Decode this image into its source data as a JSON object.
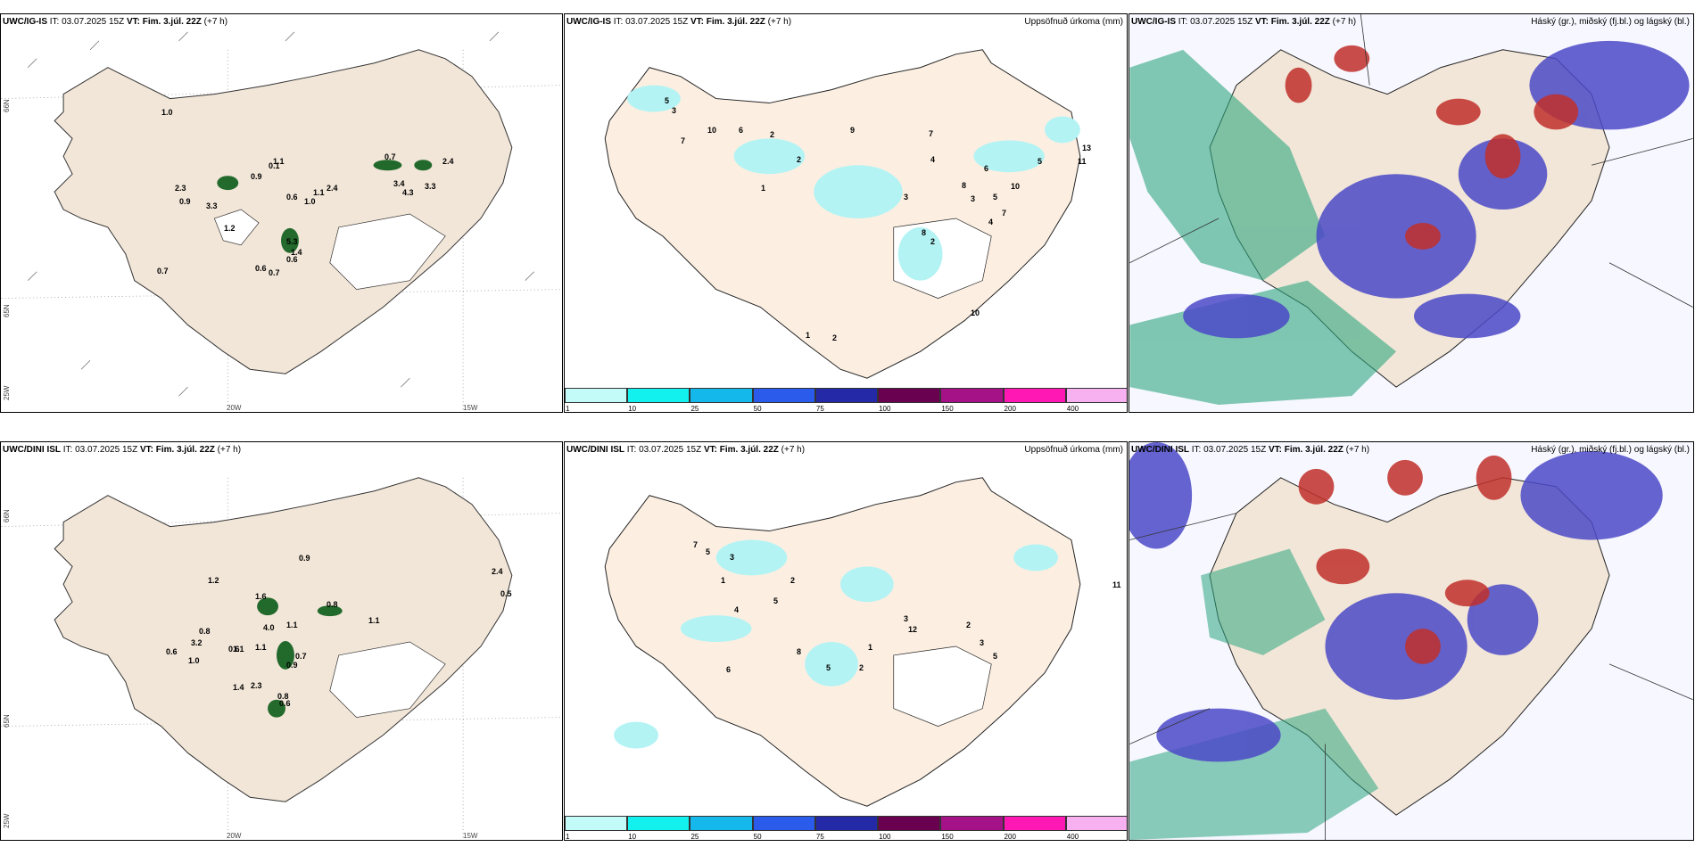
{
  "rows": [
    {
      "panels": [
        {
          "model": "UWC/IG-IS",
          "it_label": "IT:",
          "it": "03.07.2025 15Z",
          "vt_label": "VT:",
          "vt": "Fim. 3.júl. 22Z",
          "lead": "(+7 h)",
          "right": "",
          "lat_labels": [
            "66N",
            "65N",
            "25W"
          ],
          "lon_labels": [
            "20W",
            "15W"
          ],
          "values": [
            "1.0",
            "2.3",
            "0.9",
            "3.3",
            "0.7",
            "1.2",
            "0.9",
            "0.1",
            "1.1",
            "0.6",
            "1.0",
            "2.4",
            "0.7",
            "3.4",
            "4.3",
            "3.3",
            "2.4",
            "5.3",
            "1.4",
            "0.6",
            "0.7",
            "1.1",
            "0.6"
          ]
        },
        {
          "model": "UWC/IG-IS",
          "it_label": "IT:",
          "it": "03.07.2025 15Z",
          "vt_label": "VT:",
          "vt": "Fim. 3.júl. 22Z",
          "lead": "(+7 h)",
          "right": "Uppsöfnuð úrkoma (mm)",
          "values": [
            "5",
            "3",
            "10",
            "6",
            "7",
            "2",
            "2",
            "9",
            "7",
            "5",
            "3",
            "1",
            "4",
            "13",
            "11",
            "8",
            "10",
            "6",
            "3",
            "4",
            "5",
            "7",
            "8",
            "2",
            "1",
            "2",
            "10"
          ]
        },
        {
          "model": "UWC/IG-IS",
          "it_label": "IT:",
          "it": "03.07.2025 15Z",
          "vt_label": "VT:",
          "vt": "Fim. 3.júl. 22Z",
          "lead": "(+7 h)",
          "right": "Háský (gr.), miðský (fj.bl.) og lágský (bl.)"
        }
      ]
    },
    {
      "panels": [
        {
          "model": "UWC/DINI ISL",
          "it_label": "IT:",
          "it": "03.07.2025 15Z",
          "vt_label": "VT:",
          "vt": "Fim. 3.júl. 22Z",
          "lead": "(+7 h)",
          "right": "",
          "lat_labels": [
            "66N",
            "65N",
            "25W"
          ],
          "lon_labels": [
            "20W",
            "15W"
          ],
          "values": [
            "0.9",
            "1.2",
            "1.6",
            "0.8",
            "1.1",
            "0.8",
            "4.0",
            "1.1",
            "0.6",
            "3.2",
            "1.1",
            "1.0",
            "0.6",
            "1.4",
            "2.3",
            "0.7",
            "0.9",
            "0.6",
            "2.4",
            "0.5",
            "0.8",
            "1.1"
          ]
        },
        {
          "model": "UWC/DINI ISL",
          "it_label": "IT:",
          "it": "03.07.2025 15Z",
          "vt_label": "VT:",
          "vt": "Fim. 3.júl. 22Z",
          "lead": "(+7 h)",
          "right": "Uppsöfnuð úrkoma (mm)",
          "values": [
            "7",
            "5",
            "3",
            "2",
            "1",
            "4",
            "5",
            "6",
            "8",
            "2",
            "3",
            "12",
            "5",
            "1",
            "11",
            "2",
            "3",
            "5"
          ]
        },
        {
          "model": "UWC/DINI ISL",
          "it_label": "IT:",
          "it": "03.07.2025 15Z",
          "vt_label": "VT:",
          "vt": "Fim. 3.júl. 22Z",
          "lead": "(+7 h)",
          "right": "Háský (gr.), miðský (fj.bl.) og lágský (bl.)"
        }
      ]
    }
  ],
  "colorbar": {
    "ticks": [
      "1",
      "10",
      "25",
      "50",
      "75",
      "100",
      "150",
      "200",
      "400"
    ],
    "colors": [
      "#c3fbf8",
      "#13f1ef",
      "#14b8ea",
      "#2a5bea",
      "#2429a8",
      "#6a0050",
      "#a51287",
      "#ff18b4",
      "#f7b0f0"
    ]
  },
  "colors": {
    "land": "#f2e6d8",
    "land_beige": "#efe0cc",
    "precip_cyan": "#b4f3f4",
    "cloud_high": "#2ea67f",
    "cloud_mid": "#c0302b",
    "cloud_low": "#4b49c7"
  }
}
